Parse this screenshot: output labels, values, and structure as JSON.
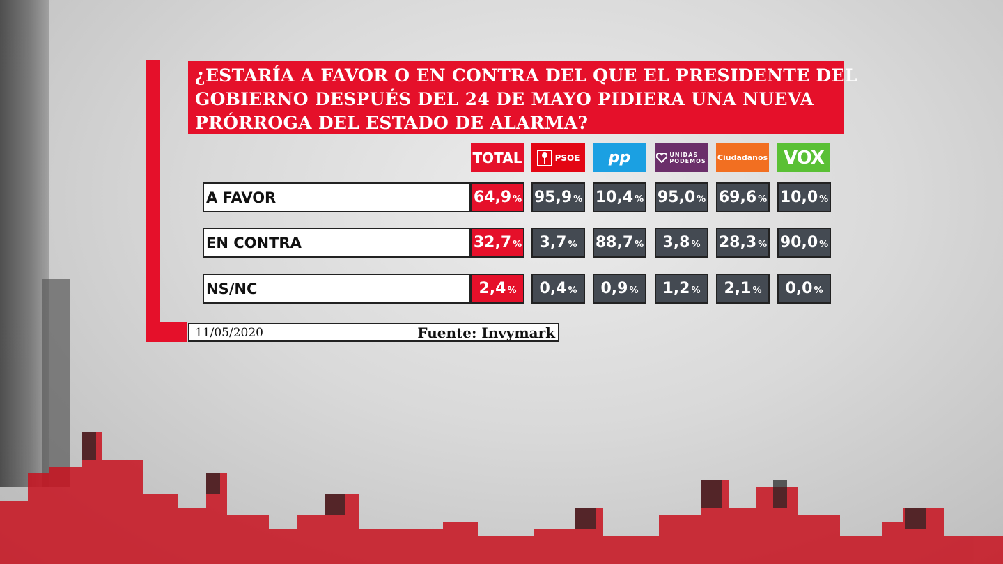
{
  "title_lines": [
    "¿ESTARÍA A FAVOR O EN CONTRA DEL QUE EL PRESIDENTE DEL",
    "GOBIERNO DESPUÉS DEL 24 DE MAYO PIDIERA UNA NUEVA",
    "PRÓRROGA DEL ESTADO DE ALARMA?"
  ],
  "headers": {
    "total": "TOTAL",
    "psoe": "PSOE",
    "pp": "pp",
    "up_line1": "UNIDAS",
    "up_line2": "PODEMOS",
    "cs": "Ciudadanos",
    "vox": "VOX"
  },
  "percent_sign": "%",
  "footer": {
    "date": "11/05/2020",
    "source": "Fuente: Invymark"
  },
  "colors": {
    "accent": "#e5102a",
    "cell": "#444a52",
    "psoe": "#e30613",
    "pp": "#1ba0e2",
    "up": "#6b2f6a",
    "cs": "#f26f21",
    "vox": "#5ac035"
  },
  "chart_data": {
    "type": "table",
    "title": "¿ESTARÍA A FAVOR O EN CONTRA DEL QUE EL PRESIDENTE DEL GOBIERNO DESPUÉS DEL 24 DE MAYO PIDIERA UNA NUEVA PRÓRROGA DEL ESTADO DE ALARMA?",
    "columns": [
      "TOTAL",
      "PSOE",
      "PP",
      "UNIDAS PODEMOS",
      "Ciudadanos",
      "VOX"
    ],
    "rows": [
      {
        "label": "A FAVOR",
        "values": [
          "64,9",
          "95,9",
          "10,4",
          "95,0",
          "69,6",
          "10,0"
        ]
      },
      {
        "label": "EN CONTRA",
        "values": [
          "32,7",
          "3,7",
          "88,7",
          "3,8",
          "28,3",
          "90,0"
        ]
      },
      {
        "label": "NS/NC",
        "values": [
          "2,4",
          "0,4",
          "0,9",
          "1,2",
          "2,1",
          "0,0"
        ]
      }
    ],
    "unit": "%"
  }
}
